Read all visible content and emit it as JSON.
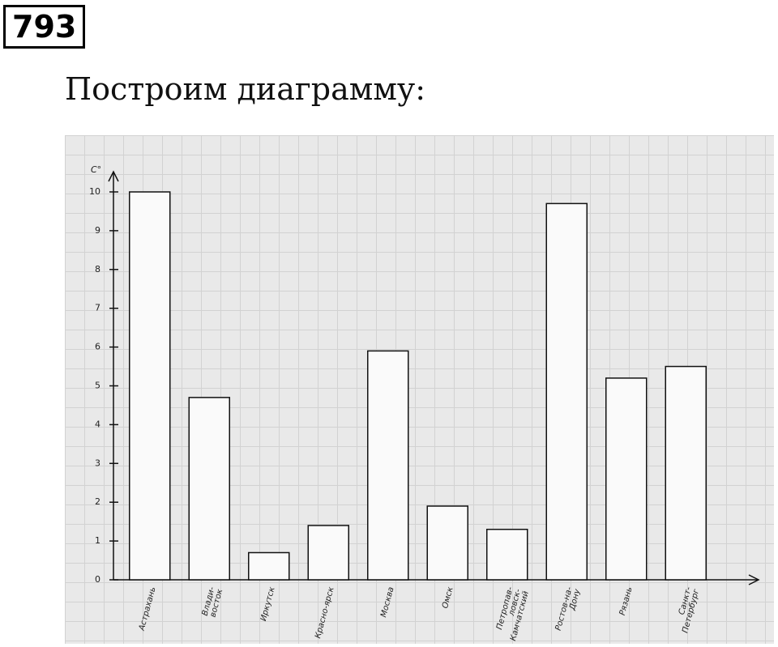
{
  "header": {
    "number": "793",
    "text": "Построим диаграмму:"
  },
  "chart_data": {
    "type": "bar",
    "y_label": "C°",
    "categories": [
      "Астрахань",
      "Влади-восток",
      "Иркутск",
      "Красно-ярск",
      "Москва",
      "Омск",
      "Петропав-ловск-Камчатский",
      "Ростов-на-Дону",
      "Рязань",
      "Санкт-Петербург"
    ],
    "values": [
      10,
      4.7,
      0.7,
      1.4,
      5.9,
      1.9,
      1.3,
      9.7,
      5.2,
      5.5
    ],
    "color": "#fafafa",
    "ylim": [
      0,
      10
    ],
    "yticks": [
      0,
      1,
      2,
      3,
      4,
      5,
      6,
      7,
      8,
      9,
      10
    ],
    "grid": true
  }
}
